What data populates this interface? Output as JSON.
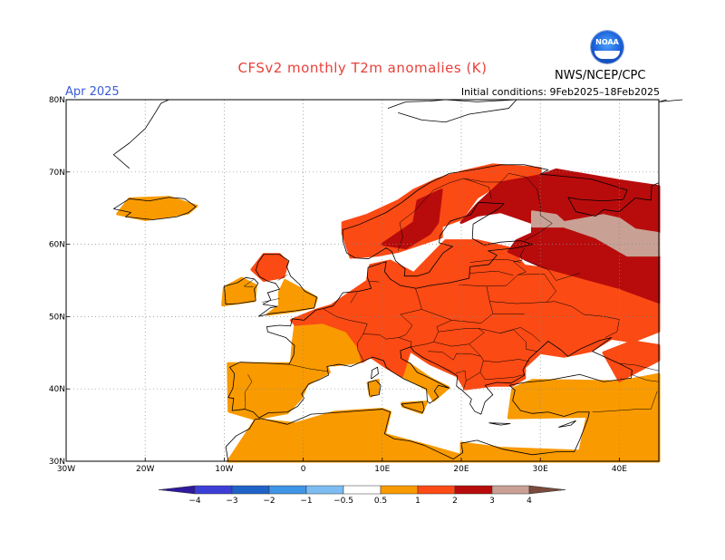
{
  "header": {
    "title": "CFSv2 monthly T2m anomalies (K)",
    "agency": "NWS/NCEP/CPC",
    "logo_text": "NOAA",
    "month": "Apr 2025",
    "initial_conditions": "Initial conditions:  9Feb2025–18Feb2025"
  },
  "map": {
    "lon_range": [
      -30,
      45
    ],
    "lat_range": [
      30,
      80
    ],
    "lon_ticks": [
      "30W",
      "20W",
      "10W",
      "0",
      "10E",
      "20E",
      "30E",
      "40E"
    ],
    "lat_ticks": [
      "30N",
      "40N",
      "50N",
      "60N",
      "70N",
      "80N"
    ],
    "grid": "dotted"
  },
  "colorbar": {
    "levels": [
      "−4",
      "−3",
      "−2",
      "−1",
      "−0.5",
      "0.5",
      "1",
      "2",
      "3",
      "4"
    ],
    "colors": [
      "#2e1a9c",
      "#3c3fd6",
      "#1f63c9",
      "#3f95e6",
      "#7cbcf2",
      "#ffffff",
      "#f99a00",
      "#fb4a14",
      "#b80c0c",
      "#c8a094",
      "#7a4a3c"
    ]
  },
  "legend_colors": {
    "anomaly_0_5_to_1": "#f99a00",
    "anomaly_1_to_2": "#fb4a14",
    "anomaly_2_to_3": "#b80c0c",
    "anomaly_3_to_4": "#c8a094"
  }
}
